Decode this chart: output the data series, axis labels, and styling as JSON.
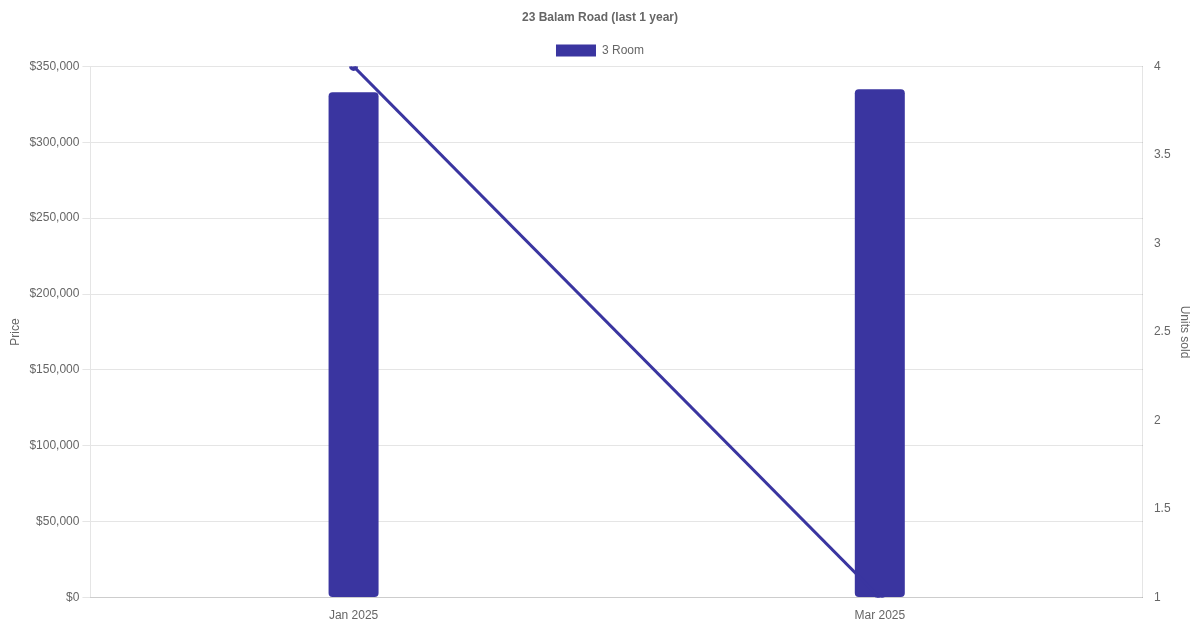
{
  "chart_data": {
    "type": "bar",
    "title": "23 Balam Road (last 1 year)",
    "ylabel": "Price",
    "y2label": "Units sold",
    "categories": [
      "Jan 2025",
      "Mar 2025"
    ],
    "series": [
      {
        "name": "3 Room",
        "color": "#3a35a0",
        "values": [
          333000,
          335000
        ]
      },
      {
        "type": "line",
        "axis": "y2",
        "color": "#3a35a0",
        "values": [
          4,
          1
        ],
        "marker": "circle"
      }
    ],
    "ylim": [
      0,
      350000
    ],
    "yticks": [
      {
        "value": 0,
        "label": "$0"
      },
      {
        "value": 50000,
        "label": "$50,000"
      },
      {
        "value": 100000,
        "label": "$100,000"
      },
      {
        "value": 150000,
        "label": "$150,000"
      },
      {
        "value": 200000,
        "label": "$200,000"
      },
      {
        "value": 250000,
        "label": "$250,000"
      },
      {
        "value": 300000,
        "label": "$300,000"
      },
      {
        "value": 350000,
        "label": "$350,000"
      }
    ],
    "y2lim": [
      1,
      4
    ],
    "y2ticks": [
      1,
      1.5,
      2,
      2.5,
      3,
      3.5,
      4
    ],
    "grid": "y",
    "legend": "top"
  }
}
